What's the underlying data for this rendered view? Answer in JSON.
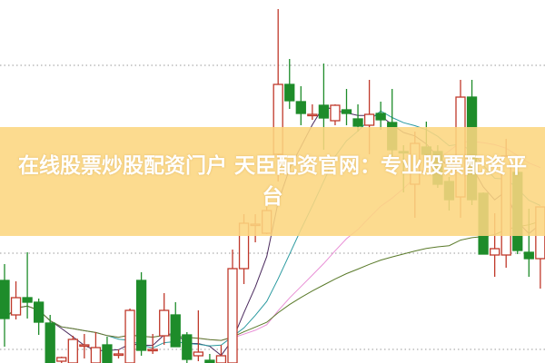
{
  "banner": {
    "title": "在线股票炒股配资门户 天臣配资官网：专业股票配资平台"
  },
  "chart_data": {
    "type": "candlestick",
    "title": "",
    "xlabel": "",
    "ylabel": "",
    "grid": "horizontal dotted",
    "up_color": "#c0392b",
    "down_color": "#1e8c2a",
    "ma_colors": [
      "#4b2a5e",
      "#2a9aa0",
      "#e98fd6",
      "#5a7a2a"
    ],
    "candles": [
      {
        "o": 91,
        "h": 109,
        "l": 18,
        "c": 49
      },
      {
        "o": 53,
        "h": 90,
        "l": 48,
        "c": 72
      },
      {
        "o": 72,
        "h": 122,
        "l": 49,
        "c": 67
      },
      {
        "o": 67,
        "h": 71,
        "l": 31,
        "c": 45
      },
      {
        "o": 44,
        "h": 53,
        "l": 0,
        "c": 0
      },
      {
        "o": 2,
        "h": 7,
        "l": 0,
        "c": 6
      },
      {
        "o": 0,
        "h": 30,
        "l": 0,
        "c": 26
      },
      {
        "o": 20,
        "h": 32,
        "l": 5,
        "c": 20
      },
      {
        "o": 0,
        "h": 34,
        "l": 0,
        "c": 17
      },
      {
        "o": 20,
        "h": 29,
        "l": 0,
        "c": 0
      },
      {
        "o": 10,
        "h": 15,
        "l": 5,
        "c": 10
      },
      {
        "o": 0,
        "h": 60,
        "l": 0,
        "c": 58
      },
      {
        "o": 91,
        "h": 100,
        "l": 8,
        "c": 14
      },
      {
        "o": 15,
        "h": 32,
        "l": 10,
        "c": 15
      },
      {
        "o": 30,
        "h": 77,
        "l": 20,
        "c": 58
      },
      {
        "o": 53,
        "h": 67,
        "l": 18,
        "c": 18
      },
      {
        "o": 31,
        "h": 34,
        "l": 0,
        "c": 4
      },
      {
        "o": 8,
        "h": 58,
        "l": 2,
        "c": 12
      },
      {
        "o": 3,
        "h": 10,
        "l": 0,
        "c": 0
      },
      {
        "o": 0,
        "h": 20,
        "l": 0,
        "c": 8
      },
      {
        "o": 0,
        "h": 125,
        "l": 0,
        "c": 104
      },
      {
        "o": 104,
        "h": 164,
        "l": 87,
        "c": 154
      },
      {
        "o": 153,
        "h": 164,
        "l": 133,
        "c": 153
      },
      {
        "o": 143,
        "h": 172,
        "l": 142,
        "c": 168
      },
      {
        "o": 230,
        "h": 390,
        "l": 200,
        "c": 307
      },
      {
        "o": 307,
        "h": 335,
        "l": 280,
        "c": 289
      },
      {
        "o": 288,
        "h": 305,
        "l": 262,
        "c": 275
      },
      {
        "o": 274,
        "h": 285,
        "l": 268,
        "c": 274
      },
      {
        "o": 284,
        "h": 330,
        "l": 235,
        "c": 270
      },
      {
        "o": 267,
        "h": 285,
        "l": 262,
        "c": 284
      },
      {
        "o": 279,
        "h": 302,
        "l": 262,
        "c": 275
      },
      {
        "o": 269,
        "h": 285,
        "l": 255,
        "c": 261
      },
      {
        "o": 262,
        "h": 312,
        "l": 230,
        "c": 274
      },
      {
        "o": 275,
        "h": 288,
        "l": 257,
        "c": 268
      },
      {
        "o": 265,
        "h": 302,
        "l": 228,
        "c": 235
      },
      {
        "o": 233,
        "h": 240,
        "l": 188,
        "c": 232
      },
      {
        "o": 197,
        "h": 255,
        "l": 160,
        "c": 242
      },
      {
        "o": 238,
        "h": 266,
        "l": 220,
        "c": 230
      },
      {
        "o": 233,
        "h": 240,
        "l": 193,
        "c": 197
      },
      {
        "o": 200,
        "h": 205,
        "l": 168,
        "c": 180
      },
      {
        "o": 183,
        "h": 312,
        "l": 160,
        "c": 293
      },
      {
        "o": 293,
        "h": 312,
        "l": 174,
        "c": 180
      },
      {
        "o": 187,
        "h": 188,
        "l": 120,
        "c": 120
      },
      {
        "o": 119,
        "h": 165,
        "l": 95,
        "c": 126
      },
      {
        "o": 119,
        "h": 247,
        "l": 105,
        "c": 228
      },
      {
        "o": 210,
        "h": 218,
        "l": 120,
        "c": 124
      },
      {
        "o": 122,
        "h": 170,
        "l": 95,
        "c": 115
      },
      {
        "o": 115,
        "h": 172,
        "l": 82,
        "c": 172
      }
    ]
  }
}
